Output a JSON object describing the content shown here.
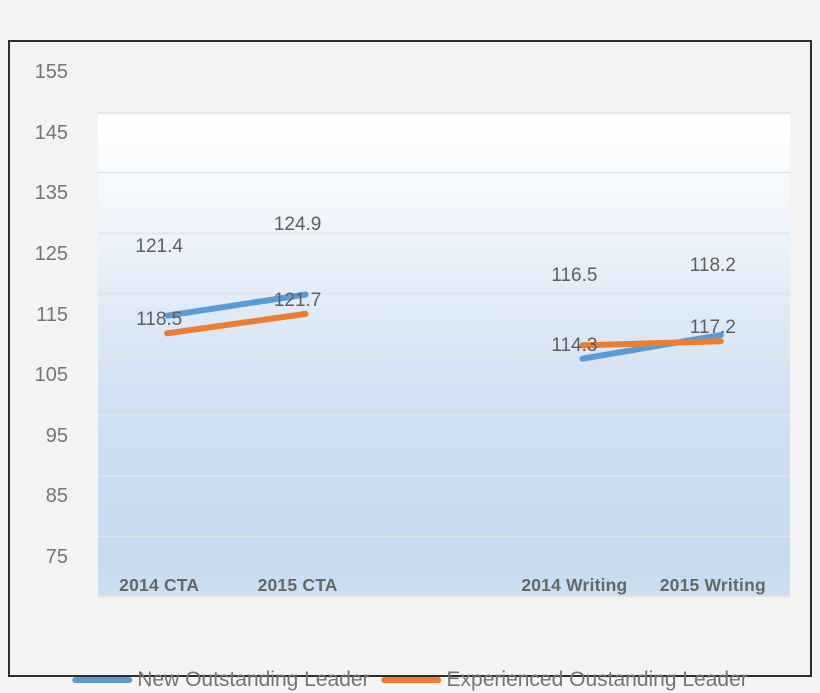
{
  "chart_data": {
    "type": "line",
    "title": "",
    "xlabel": "",
    "ylabel": "",
    "categories": [
      "2014 CTA",
      "2015 CTA",
      "",
      "2014 Writing",
      "2015 Writing"
    ],
    "series": [
      {
        "name": "New Outstanding Leader",
        "color": "#5B9BD5",
        "values": [
          121.4,
          124.9,
          null,
          114.3,
          118.2
        ],
        "label_placements": [
          "above",
          "above",
          null,
          "below",
          "above"
        ]
      },
      {
        "name": "Experienced Oustanding Leader",
        "color": "#ED7D31",
        "values": [
          118.5,
          121.7,
          null,
          116.5,
          117.2
        ],
        "label_placements": [
          "below",
          "below",
          null,
          "above",
          "below"
        ]
      }
    ],
    "ylim": [
      75,
      155
    ],
    "ytick_step": 10,
    "yticks": [
      155,
      145,
      135,
      125,
      115,
      105,
      95,
      85,
      75
    ],
    "grid": true,
    "gridline_color": "#e3e5e6",
    "legend_position": "bottom"
  },
  "legend": {
    "items": [
      {
        "label": "New Outstanding Leader",
        "color": "#5B9BD5"
      },
      {
        "label": "Experienced Oustanding Leader",
        "color": "#ED7D31"
      }
    ]
  }
}
